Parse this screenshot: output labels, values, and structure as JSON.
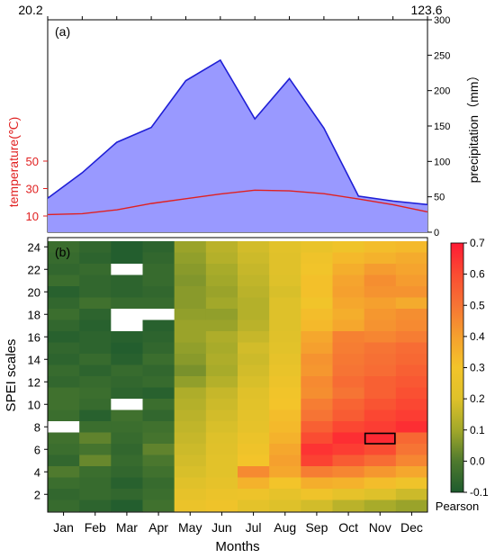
{
  "colors": {
    "precip_fill": "#9999ff",
    "precip_line": "#1f1fd6",
    "temp_line": "#e02020",
    "temp_axis": "#e02020",
    "missing_cell": "#ffffff",
    "highlight_box": "#000000"
  },
  "chart_data": [
    {
      "type": "area",
      "panel_label": "(a)",
      "categories": [
        "Jan",
        "Feb",
        "Mar",
        "Apr",
        "May",
        "Jun",
        "Jul",
        "Aug",
        "Sep",
        "Oct",
        "Nov",
        "Dec"
      ],
      "top_axis_labels": [
        "20.2",
        "123.6"
      ],
      "precip_axis": {
        "label": "precipitation（mm）",
        "ylim": [
          0,
          300
        ],
        "ticks": [
          0,
          50,
          100,
          150,
          200,
          250,
          300
        ]
      },
      "temp_axis": {
        "label": "temperature(℃)",
        "ticks": [
          10,
          30,
          50
        ]
      },
      "series": [
        {
          "name": "precipitation",
          "values": [
            48,
            84,
            127,
            148,
            214,
            243,
            160,
            217,
            147,
            51,
            44,
            39
          ]
        },
        {
          "name": "temperature",
          "values": [
            11,
            11.7,
            14.5,
            19.1,
            22.6,
            26.0,
            28.8,
            28.3,
            26.3,
            22.4,
            18.2,
            13.0
          ]
        }
      ]
    },
    {
      "type": "heatmap",
      "panel_label": "(b)",
      "xlabel": "Months",
      "ylabel": "SPEI scales",
      "x_categories": [
        "Jan",
        "Feb",
        "Mar",
        "Apr",
        "May",
        "Jun",
        "Jul",
        "Aug",
        "Sep",
        "Oct",
        "Nov",
        "Dec"
      ],
      "y_ticks": [
        2,
        4,
        6,
        8,
        10,
        12,
        14,
        16,
        18,
        20,
        22,
        24
      ],
      "colorbar": {
        "label": "Pearson",
        "range": [
          -0.1,
          0.7
        ],
        "ticks": [
          "0.7",
          "0.6",
          "0.5",
          "0.4",
          "0.3",
          "0.2",
          "0.1",
          "0.0",
          "-0.1"
        ]
      },
      "highlight": {
        "month": "Nov",
        "scale": 7
      },
      "rows_scale_24_to_1": [
        [
          -0.04,
          -0.06,
          -0.09,
          -0.07,
          0.09,
          0.14,
          0.18,
          0.22,
          0.25,
          0.28,
          0.32,
          0.33
        ],
        [
          -0.05,
          -0.07,
          -0.09,
          -0.06,
          0.08,
          0.13,
          0.17,
          0.21,
          0.28,
          0.33,
          0.35,
          0.37
        ],
        [
          -0.06,
          -0.05,
          null,
          -0.05,
          0.07,
          0.11,
          0.16,
          0.21,
          0.29,
          0.36,
          0.41,
          0.39
        ],
        [
          -0.04,
          -0.06,
          -0.07,
          -0.05,
          0.06,
          0.1,
          0.15,
          0.2,
          0.31,
          0.39,
          0.44,
          0.41
        ],
        [
          -0.08,
          -0.06,
          -0.07,
          -0.06,
          0.07,
          0.09,
          0.14,
          0.19,
          0.31,
          0.4,
          0.43,
          0.43
        ],
        [
          -0.06,
          -0.03,
          -0.05,
          -0.05,
          0.07,
          0.1,
          0.13,
          0.2,
          0.29,
          0.38,
          0.4,
          0.37
        ],
        [
          -0.04,
          -0.07,
          null,
          null,
          0.08,
          0.08,
          0.13,
          0.2,
          0.32,
          0.36,
          0.42,
          0.44
        ],
        [
          -0.06,
          -0.08,
          null,
          -0.08,
          0.09,
          0.09,
          0.14,
          0.2,
          0.33,
          0.38,
          0.43,
          0.45
        ],
        [
          -0.08,
          -0.07,
          -0.08,
          -0.07,
          0.09,
          0.12,
          0.16,
          0.21,
          0.38,
          0.47,
          0.46,
          0.48
        ],
        [
          -0.06,
          -0.07,
          -0.09,
          -0.06,
          0.08,
          0.11,
          0.18,
          0.22,
          0.4,
          0.48,
          0.5,
          0.52
        ],
        [
          -0.07,
          -0.05,
          -0.08,
          -0.04,
          0.07,
          0.12,
          0.17,
          0.24,
          0.43,
          0.49,
          0.51,
          0.53
        ],
        [
          -0.05,
          -0.07,
          -0.05,
          -0.06,
          0.05,
          0.11,
          0.18,
          0.25,
          0.42,
          0.5,
          0.52,
          0.55
        ],
        [
          -0.06,
          -0.05,
          -0.06,
          -0.05,
          0.08,
          0.13,
          0.19,
          0.27,
          0.45,
          0.52,
          0.55,
          0.57
        ],
        [
          -0.03,
          -0.04,
          -0.07,
          -0.08,
          0.12,
          0.16,
          0.21,
          0.29,
          0.44,
          0.5,
          0.55,
          0.59
        ],
        [
          -0.03,
          -0.05,
          null,
          -0.04,
          0.13,
          0.17,
          0.22,
          0.3,
          0.48,
          0.54,
          0.58,
          0.61
        ],
        [
          -0.04,
          -0.08,
          -0.03,
          -0.06,
          0.14,
          0.18,
          0.23,
          0.32,
          0.5,
          0.56,
          0.61,
          0.63
        ],
        [
          null,
          -0.04,
          -0.04,
          -0.03,
          0.15,
          0.19,
          0.24,
          0.33,
          0.55,
          0.61,
          0.63,
          0.66
        ],
        [
          -0.03,
          0.02,
          -0.05,
          -0.02,
          0.16,
          0.2,
          0.26,
          0.35,
          0.6,
          0.66,
          0.67,
          0.53
        ],
        [
          -0.04,
          -0.02,
          -0.06,
          0.02,
          0.17,
          0.21,
          0.28,
          0.38,
          0.65,
          0.63,
          0.6,
          0.5
        ],
        [
          -0.06,
          0.03,
          -0.05,
          -0.01,
          0.18,
          0.22,
          0.3,
          0.4,
          0.62,
          0.56,
          0.52,
          0.46
        ],
        [
          0.0,
          -0.04,
          -0.06,
          -0.03,
          0.19,
          0.22,
          0.45,
          0.38,
          0.48,
          0.46,
          0.42,
          0.38
        ],
        [
          -0.04,
          -0.05,
          -0.08,
          -0.05,
          0.21,
          0.24,
          0.35,
          0.3,
          0.36,
          0.35,
          0.32,
          0.28
        ],
        [
          -0.06,
          -0.05,
          -0.06,
          -0.04,
          0.24,
          0.26,
          0.27,
          0.24,
          0.28,
          0.24,
          0.2,
          0.17
        ],
        [
          -0.05,
          -0.07,
          -0.09,
          -0.03,
          0.26,
          0.28,
          0.23,
          0.2,
          0.18,
          0.14,
          0.11,
          0.09
        ]
      ]
    }
  ]
}
